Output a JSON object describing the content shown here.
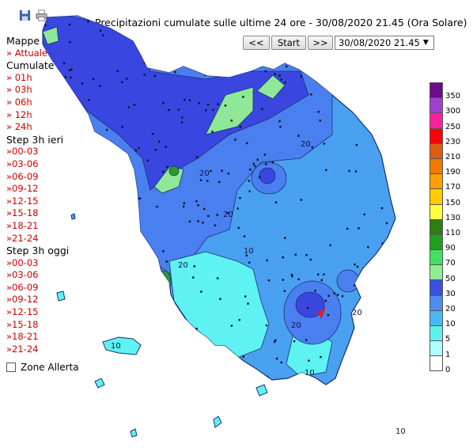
{
  "toolbar": {
    "save_icon": "floppy-disk-icon",
    "print_icon": "printer-icon"
  },
  "title": "Precipitazioni cumulate sulle ultime 24 ore - 30/08/2020 21.45 (Ora Solare)",
  "nav": {
    "prev_label": "<<",
    "start_label": "Start",
    "next_label": ">>",
    "selected_time": "30/08/2020 21.45"
  },
  "sidebar": {
    "maps_heading": "Mappe",
    "current_link": "» Attuale",
    "cumulative_heading": "Cumulate",
    "cumulative_links": [
      "» 01h",
      "» 03h",
      "» 06h",
      "» 12h",
      "» 24h"
    ],
    "yesterday_heading": "Step 3h ieri",
    "yesterday_links": [
      "»00-03",
      "»03-06",
      "»06-09",
      "»09-12",
      "»12-15",
      "»15-18",
      "»18-21",
      "»21-24"
    ],
    "today_heading": "Step 3h oggi",
    "today_links": [
      "»00-03",
      "»03-06",
      "»06-09",
      "»09-12",
      "»12-15",
      "»15-18",
      "»18-21",
      "»21-24"
    ]
  },
  "zone_allerta": {
    "label": "Zone Allerta",
    "checked": false
  },
  "legend": {
    "unit_hint": "",
    "classes": [
      {
        "label": "350",
        "color": "#6a0a8c"
      },
      {
        "label": "300",
        "color": "#a040d0"
      },
      {
        "label": "250",
        "color": "#ff20a0"
      },
      {
        "label": "230",
        "color": "#ff0000"
      },
      {
        "label": "210",
        "color": "#e05a10"
      },
      {
        "label": "190",
        "color": "#f07a00"
      },
      {
        "label": "170",
        "color": "#ff9f00"
      },
      {
        "label": "150",
        "color": "#ffcc00"
      },
      {
        "label": "130",
        "color": "#ffff40"
      },
      {
        "label": "110",
        "color": "#2e7d10"
      },
      {
        "label": "90",
        "color": "#20a020"
      },
      {
        "label": "70",
        "color": "#40e060"
      },
      {
        "label": "50",
        "color": "#90ee90"
      },
      {
        "label": "30",
        "color": "#3a50e0"
      },
      {
        "label": "20",
        "color": "#4a8ef0"
      },
      {
        "label": "10",
        "color": "#4ab8f4"
      },
      {
        "label": "5",
        "color": "#60f0f0"
      },
      {
        "label": "1",
        "color": "#b0ffff"
      },
      {
        "label": "0",
        "color": "#ffffff"
      }
    ]
  },
  "map_labels": [
    {
      "text": "20",
      "cls": "20"
    },
    {
      "text": "20",
      "cls": "20"
    },
    {
      "text": "20",
      "cls": "20"
    },
    {
      "text": "20",
      "cls": "20"
    },
    {
      "text": "10",
      "cls": "10"
    },
    {
      "text": "10",
      "cls": "10"
    },
    {
      "text": "10",
      "cls": "10"
    },
    {
      "text": "20",
      "cls": "20"
    },
    {
      "text": "20",
      "cls": "20"
    },
    {
      "text": "10",
      "cls": "10"
    }
  ]
}
